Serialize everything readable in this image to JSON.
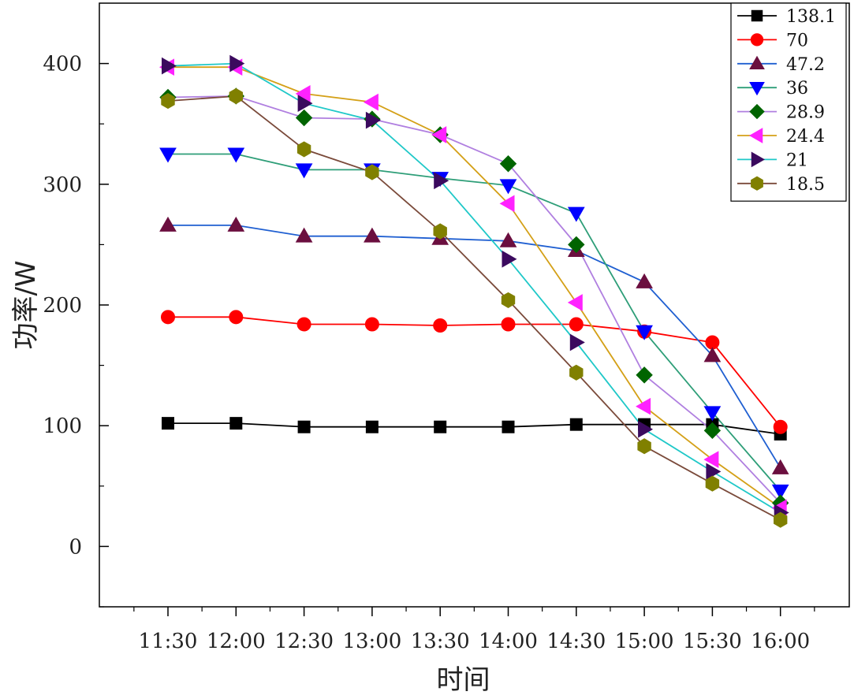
{
  "chart_data": {
    "type": "line",
    "xlabel": "时间",
    "ylabel": "功率/W",
    "categories": [
      "11:30",
      "12:00",
      "12:30",
      "13:00",
      "13:30",
      "14:00",
      "14:30",
      "15:00",
      "15:30",
      "16:00"
    ],
    "ylim": [
      -50,
      450
    ],
    "yticks": [
      0,
      100,
      200,
      300,
      400
    ],
    "yticks_minor": [
      -50,
      50,
      150,
      250,
      350
    ],
    "grid": false,
    "legend_position": "top-right",
    "series": [
      {
        "name": "138.1",
        "color": "#000000",
        "marker": "square",
        "values": [
          102,
          102,
          99,
          99,
          99,
          99,
          101,
          101,
          101,
          93
        ]
      },
      {
        "name": "70",
        "color": "#ff0000",
        "marker": "circle",
        "values": [
          190,
          190,
          184,
          184,
          183,
          184,
          184,
          178,
          169,
          99
        ]
      },
      {
        "name": "47.2",
        "color": "#1f5fd1",
        "line_color": "#1f5fd1",
        "marker_color": "#6b0f3f",
        "marker": "triangle-up",
        "values": [
          266,
          266,
          257,
          257,
          255,
          253,
          245,
          219,
          158,
          65
        ]
      },
      {
        "name": "36",
        "color": "#2e9e78",
        "line_color": "#2e9e78",
        "marker_color": "#0000ff",
        "marker": "triangle-down",
        "values": [
          325,
          325,
          312,
          312,
          305,
          299,
          276,
          178,
          111,
          46
        ]
      },
      {
        "name": "28.9",
        "color": "#b07fe0",
        "line_color": "#b07fe0",
        "marker_color": "#006400",
        "marker": "diamond",
        "values": [
          372,
          373,
          355,
          354,
          341,
          317,
          250,
          142,
          96,
          36
        ]
      },
      {
        "name": "24.4",
        "color": "#d4a017",
        "line_color": "#d4a017",
        "marker_color": "#ff22ff",
        "marker": "triangle-left",
        "values": [
          397,
          397,
          375,
          368,
          341,
          284,
          202,
          116,
          72,
          32
        ]
      },
      {
        "name": "21",
        "color": "#1fc8c8",
        "line_color": "#1fc8c8",
        "marker_color": "#3b0a5e",
        "marker": "triangle-right",
        "values": [
          398,
          400,
          367,
          353,
          303,
          238,
          169,
          97,
          62,
          28
        ]
      },
      {
        "name": "18.5",
        "color": "#7a4a3a",
        "line_color": "#7a4a3a",
        "marker_color": "#808000",
        "marker": "hexagon",
        "values": [
          369,
          373,
          329,
          310,
          261,
          204,
          144,
          83,
          52,
          22
        ]
      }
    ]
  }
}
